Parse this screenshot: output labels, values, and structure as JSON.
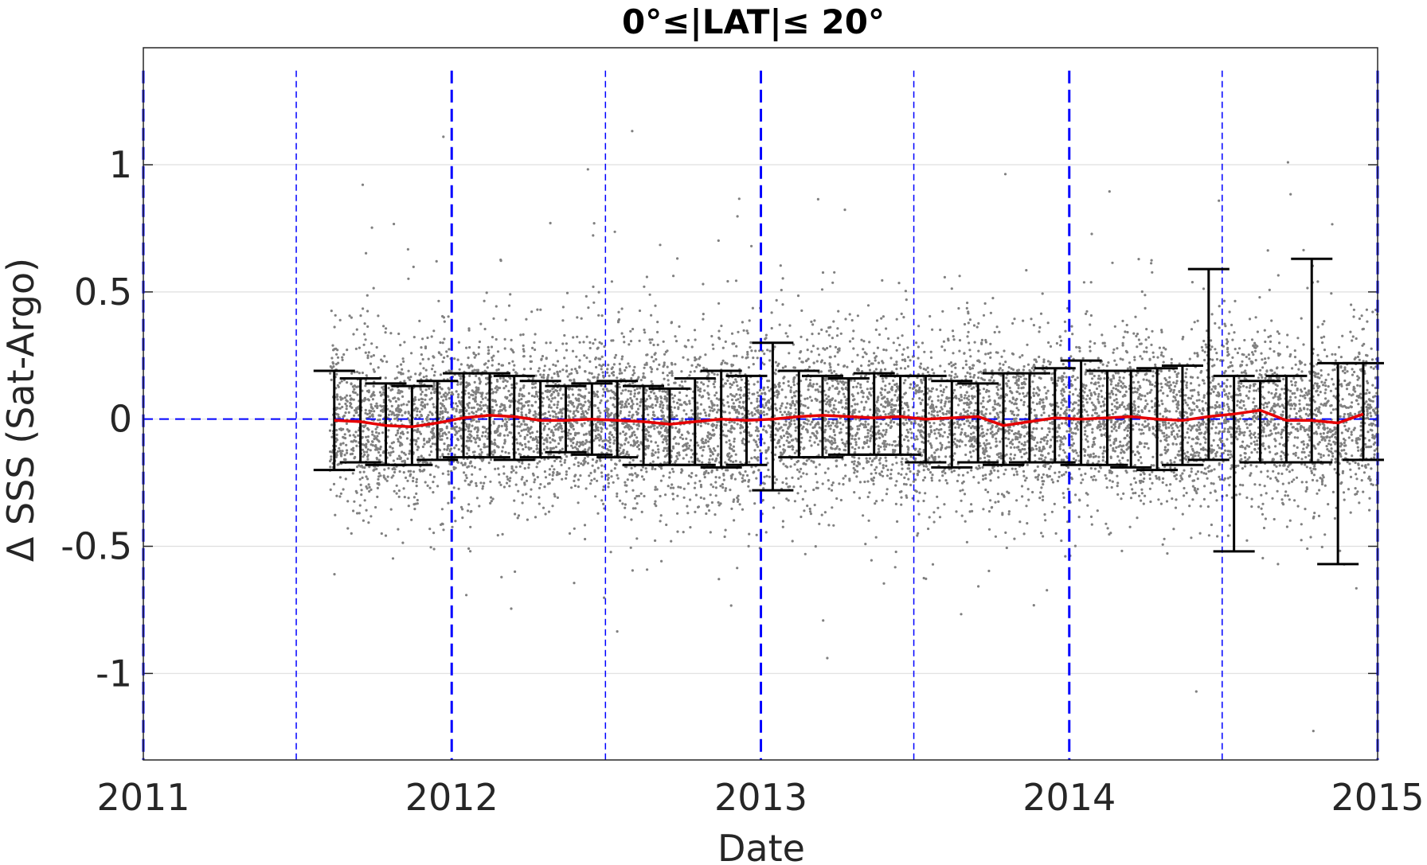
{
  "chart_data": {
    "type": "scatter",
    "title": "0°≤|LAT|≤ 20°",
    "xlabel": "Date",
    "ylabel": "Δ SSS (Sat-Argo)",
    "xlim": [
      "2011-01-01",
      "2015-01-01"
    ],
    "ylim": [
      -1.34,
      1.46
    ],
    "x_ticks": [
      "2011",
      "2012",
      "2013",
      "2014",
      "2015"
    ],
    "y_ticks": [
      1,
      0.5,
      0,
      -0.5,
      -1
    ],
    "y_tick_labels": [
      "1",
      "0.5",
      "0",
      "-0.5",
      "-1"
    ],
    "grid": "horizontal",
    "scatter_range": {
      "start": "2011-08-10",
      "end": "2015-01-01"
    },
    "vertical_lines": {
      "year_boundaries": [
        "2011-01-01",
        "2012-01-01",
        "2013-01-01",
        "2014-01-01",
        "2015-01-01"
      ],
      "mid_year": [
        "2011-07-01",
        "2012-07-01",
        "2013-07-01",
        "2014-07-01"
      ]
    },
    "series": [
      {
        "kind": "errorbar",
        "x": [
          "2011-08-15",
          "2011-09-15",
          "2011-10-15",
          "2011-11-15",
          "2011-12-15",
          "2012-01-15",
          "2012-02-15",
          "2012-03-15",
          "2012-04-15",
          "2012-05-15",
          "2012-06-15",
          "2012-07-15",
          "2012-08-15",
          "2012-09-15",
          "2012-10-15",
          "2012-11-15",
          "2012-12-15",
          "2013-01-15",
          "2013-02-15",
          "2013-03-15",
          "2013-04-15",
          "2013-05-15",
          "2013-06-15",
          "2013-07-15",
          "2013-08-15",
          "2013-09-15",
          "2013-10-15",
          "2013-11-15",
          "2013-12-15",
          "2014-01-15",
          "2014-02-15",
          "2014-03-15",
          "2014-04-15",
          "2014-05-15",
          "2014-06-15",
          "2014-07-15",
          "2014-08-15",
          "2014-09-15",
          "2014-10-15",
          "2014-11-15",
          "2014-12-15"
        ],
        "mean": [
          -0.005,
          -0.01,
          -0.025,
          -0.03,
          -0.015,
          0.005,
          0.015,
          0.01,
          -0.005,
          -0.005,
          0.0,
          -0.005,
          -0.01,
          -0.02,
          -0.01,
          0.0,
          -0.005,
          0.0,
          0.01,
          0.015,
          0.01,
          0.005,
          0.01,
          0.0,
          0.005,
          0.01,
          -0.025,
          -0.01,
          0.005,
          0.0,
          0.005,
          0.01,
          0.0,
          -0.005,
          0.01,
          0.02,
          0.035,
          -0.005,
          -0.005,
          -0.015,
          0.02
        ],
        "lower": [
          -0.2,
          -0.17,
          -0.18,
          -0.18,
          -0.16,
          -0.15,
          -0.15,
          -0.16,
          -0.15,
          -0.13,
          -0.14,
          -0.15,
          -0.18,
          -0.18,
          -0.18,
          -0.19,
          -0.18,
          -0.28,
          -0.15,
          -0.15,
          -0.14,
          -0.14,
          -0.14,
          -0.17,
          -0.19,
          -0.17,
          -0.18,
          -0.17,
          -0.17,
          -0.18,
          -0.18,
          -0.19,
          -0.2,
          -0.18,
          -0.16,
          -0.52,
          -0.17,
          -0.17,
          -0.17,
          -0.57,
          -0.16
        ],
        "upper": [
          0.19,
          0.16,
          0.14,
          0.13,
          0.15,
          0.18,
          0.18,
          0.17,
          0.15,
          0.13,
          0.14,
          0.15,
          0.13,
          0.12,
          0.16,
          0.19,
          0.17,
          0.3,
          0.19,
          0.17,
          0.16,
          0.18,
          0.17,
          0.17,
          0.15,
          0.14,
          0.18,
          0.18,
          0.2,
          0.23,
          0.19,
          0.19,
          0.2,
          0.21,
          0.59,
          0.17,
          0.15,
          0.17,
          0.63,
          0.22,
          0.22
        ]
      }
    ],
    "colors": {
      "scatter": "#808080",
      "mean_line": "#e60000",
      "errorbar": "#000000",
      "zero_line": "#0000ff",
      "year_lines": "#0000ff",
      "grid": "#dfdfdf"
    }
  }
}
